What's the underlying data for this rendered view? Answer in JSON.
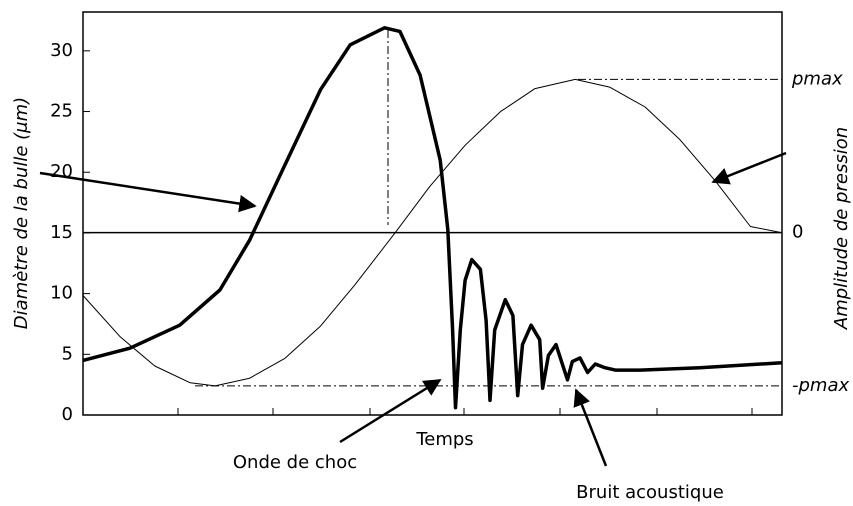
{
  "chart_data": {
    "type": "line",
    "x_label": "Temps",
    "y_label": "Diamètre de la bulle (μm)",
    "y2_label": "Amplitude de pression",
    "xlim": [
      0,
      7.3
    ],
    "ylim": [
      0,
      33.2
    ],
    "yticks": [
      0,
      5,
      10,
      15,
      20,
      25,
      30
    ],
    "y2lim": [
      -1.19,
      1.44
    ],
    "y2ticks": [
      {
        "value": 1,
        "label": "pmax"
      },
      0,
      {
        "value": -1,
        "label": "-pmax"
      }
    ],
    "annotations": [
      "Onde de choc",
      "Bruit acoustique"
    ],
    "series": [
      {
        "color": "#000000",
        "x": [
          0,
          0.49,
          1.01,
          1.43,
          1.74,
          2.06,
          2.48,
          2.79,
          3.15,
          3.31,
          3.52,
          3.73,
          3.81,
          3.86,
          3.89,
          3.94,
          3.99,
          4.06,
          4.15,
          4.21,
          4.25,
          4.3,
          4.41,
          4.49,
          4.54,
          4.59,
          4.68,
          4.77,
          4.8,
          4.86,
          4.94,
          5.01,
          5.06,
          5.11,
          5.19,
          5.27,
          5.35,
          5.45,
          5.56,
          5.82,
          6.44,
          7.3
        ],
        "values": [
          4.5,
          5.5,
          7.4,
          10.3,
          14.4,
          19.8,
          26.8,
          30.5,
          31.9,
          31.6,
          28.0,
          21.0,
          15.3,
          7.0,
          0.6,
          7.0,
          11.1,
          12.8,
          12.0,
          7.8,
          1.2,
          7.0,
          9.5,
          8.2,
          1.6,
          5.8,
          7.4,
          6.2,
          2.2,
          4.9,
          5.8,
          4.1,
          2.9,
          4.4,
          4.7,
          3.5,
          4.2,
          3.9,
          3.7,
          3.7,
          3.9,
          4.3
        ]
      },
      {
        "color": "#000000",
        "axis": "y2",
        "x": [
          0,
          0.39,
          0.75,
          1.12,
          1.38,
          1.74,
          2.11,
          2.48,
          2.84,
          3.26,
          3.62,
          3.99,
          4.36,
          4.72,
          5.14,
          5.5,
          5.87,
          6.23,
          6.6,
          6.97,
          7.3
        ],
        "values": [
          -0.41,
          -0.68,
          -0.87,
          -0.98,
          -1,
          -0.95,
          -0.82,
          -0.61,
          -0.34,
          0,
          0.3,
          0.57,
          0.79,
          0.94,
          1,
          0.95,
          0.82,
          0.61,
          0.34,
          0.04,
          0
        ]
      }
    ]
  }
}
